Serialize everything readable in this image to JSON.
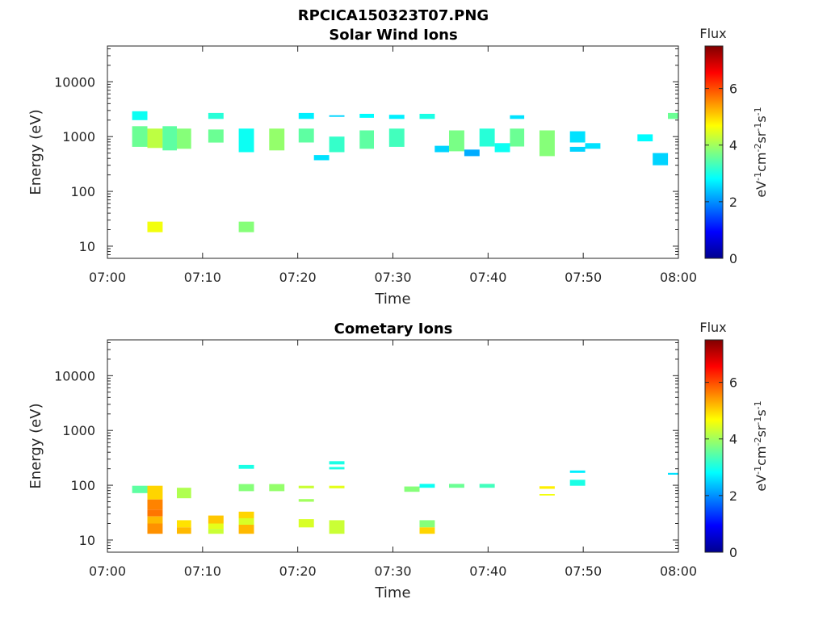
{
  "figure": {
    "title": "RPCICA150323T07.PNG"
  },
  "chart_data": [
    {
      "type": "heatmap",
      "title": "Solar Wind Ions",
      "xlabel": "Time",
      "ylabel": "Energy (eV)",
      "x_ticks": [
        "07:00",
        "07:10",
        "07:20",
        "07:30",
        "07:40",
        "07:50",
        "08:00"
      ],
      "xlim": [
        0,
        60
      ],
      "y_scale": "log",
      "ylim": [
        6,
        45000
      ],
      "y_ticks": [
        10,
        100,
        1000,
        10000
      ],
      "y_tick_labels": [
        "10",
        "100",
        "1000",
        "10000"
      ],
      "colorbar": {
        "title": "Flux",
        "label_html": "eV<sup>-1</sup>cm<sup>-2</sup>sr<sup>-1</sup>s<sup>-1</sup>",
        "label": "eV-1cm-2sr-1s-1",
        "range": [
          0,
          7.5
        ],
        "ticks": [
          0,
          2,
          4,
          6
        ]
      },
      "cells": [
        {
          "t0": 2.6,
          "t1": 4.2,
          "e0": 2000,
          "e1": 2900,
          "v": 2.9
        },
        {
          "t0": 2.6,
          "t1": 4.2,
          "e0": 650,
          "e1": 1550,
          "v": 3.6
        },
        {
          "t0": 4.2,
          "t1": 5.8,
          "e0": 620,
          "e1": 1400,
          "v": 4.2
        },
        {
          "t0": 5.8,
          "t1": 7.3,
          "e0": 560,
          "e1": 1550,
          "v": 3.5
        },
        {
          "t0": 7.3,
          "t1": 8.8,
          "e0": 600,
          "e1": 1400,
          "v": 3.8
        },
        {
          "t0": 4.2,
          "t1": 5.8,
          "e0": 18,
          "e1": 28,
          "v": 4.6
        },
        {
          "t0": 10.6,
          "t1": 12.2,
          "e0": 2100,
          "e1": 2700,
          "v": 3.1
        },
        {
          "t0": 10.6,
          "t1": 12.2,
          "e0": 780,
          "e1": 1350,
          "v": 3.6
        },
        {
          "t0": 13.8,
          "t1": 15.4,
          "e0": 520,
          "e1": 1400,
          "v": 2.9
        },
        {
          "t0": 13.8,
          "t1": 15.4,
          "e0": 18,
          "e1": 28,
          "v": 3.8
        },
        {
          "t0": 17.0,
          "t1": 18.6,
          "e0": 560,
          "e1": 1400,
          "v": 3.9
        },
        {
          "t0": 20.1,
          "t1": 21.7,
          "e0": 2100,
          "e1": 2700,
          "v": 2.7
        },
        {
          "t0": 20.1,
          "t1": 21.7,
          "e0": 780,
          "e1": 1400,
          "v": 3.5
        },
        {
          "t0": 21.7,
          "t1": 23.3,
          "e0": 370,
          "e1": 460,
          "v": 2.6
        },
        {
          "t0": 23.3,
          "t1": 24.9,
          "e0": 2300,
          "e1": 2450,
          "v": 2.5
        },
        {
          "t0": 23.3,
          "t1": 24.9,
          "e0": 520,
          "e1": 1000,
          "v": 3.2
        },
        {
          "t0": 26.5,
          "t1": 28.0,
          "e0": 2200,
          "e1": 2600,
          "v": 2.8
        },
        {
          "t0": 26.5,
          "t1": 28.0,
          "e0": 600,
          "e1": 1300,
          "v": 3.5
        },
        {
          "t0": 29.6,
          "t1": 31.2,
          "e0": 2100,
          "e1": 2500,
          "v": 2.7
        },
        {
          "t0": 29.6,
          "t1": 31.2,
          "e0": 650,
          "e1": 1400,
          "v": 3.3
        },
        {
          "t0": 32.8,
          "t1": 34.4,
          "e0": 2100,
          "e1": 2600,
          "v": 3.0
        },
        {
          "t0": 34.4,
          "t1": 35.9,
          "e0": 520,
          "e1": 680,
          "v": 2.5
        },
        {
          "t0": 35.9,
          "t1": 37.5,
          "e0": 540,
          "e1": 1300,
          "v": 3.7
        },
        {
          "t0": 37.5,
          "t1": 39.1,
          "e0": 440,
          "e1": 580,
          "v": 2.2
        },
        {
          "t0": 39.1,
          "t1": 40.7,
          "e0": 660,
          "e1": 1400,
          "v": 3.1
        },
        {
          "t0": 40.7,
          "t1": 42.3,
          "e0": 520,
          "e1": 760,
          "v": 2.9
        },
        {
          "t0": 42.3,
          "t1": 43.8,
          "e0": 2100,
          "e1": 2450,
          "v": 2.6
        },
        {
          "t0": 42.3,
          "t1": 43.8,
          "e0": 660,
          "e1": 1400,
          "v": 3.6
        },
        {
          "t0": 45.4,
          "t1": 47.0,
          "e0": 440,
          "e1": 1300,
          "v": 3.8
        },
        {
          "t0": 48.6,
          "t1": 50.2,
          "e0": 780,
          "e1": 1250,
          "v": 2.6
        },
        {
          "t0": 48.6,
          "t1": 50.2,
          "e0": 530,
          "e1": 650,
          "v": 2.5
        },
        {
          "t0": 50.2,
          "t1": 51.8,
          "e0": 600,
          "e1": 760,
          "v": 2.6
        },
        {
          "t0": 55.7,
          "t1": 57.3,
          "e0": 820,
          "e1": 1100,
          "v": 2.8
        },
        {
          "t0": 57.3,
          "t1": 58.9,
          "e0": 300,
          "e1": 500,
          "v": 2.5
        },
        {
          "t0": 58.9,
          "t1": 60.0,
          "e0": 2100,
          "e1": 2700,
          "v": 3.6
        }
      ]
    },
    {
      "type": "heatmap",
      "title": "Cometary Ions",
      "xlabel": "Time",
      "ylabel": "Energy (eV)",
      "x_ticks": [
        "07:00",
        "07:10",
        "07:20",
        "07:30",
        "07:40",
        "07:50",
        "08:00"
      ],
      "xlim": [
        0,
        60
      ],
      "y_scale": "log",
      "ylim": [
        6,
        45000
      ],
      "y_ticks": [
        10,
        100,
        1000,
        10000
      ],
      "y_tick_labels": [
        "10",
        "100",
        "1000",
        "10000"
      ],
      "colorbar": {
        "title": "Flux",
        "label_html": "eV<sup>-1</sup>cm<sup>-2</sup>sr<sup>-1</sup>s<sup>-1</sup>",
        "label": "eV-1cm-2sr-1s-1",
        "range": [
          0,
          7.5
        ],
        "ticks": [
          0,
          2,
          4,
          6
        ]
      },
      "cells": [
        {
          "t0": 2.6,
          "t1": 4.2,
          "e0": 72,
          "e1": 98,
          "v": 3.5
        },
        {
          "t0": 4.2,
          "t1": 5.8,
          "e0": 55,
          "e1": 98,
          "v": 5.0
        },
        {
          "t0": 4.2,
          "t1": 5.8,
          "e0": 36,
          "e1": 55,
          "v": 5.6
        },
        {
          "t0": 4.2,
          "t1": 5.8,
          "e0": 27,
          "e1": 36,
          "v": 5.7
        },
        {
          "t0": 4.2,
          "t1": 5.8,
          "e0": 20,
          "e1": 27,
          "v": 5.2
        },
        {
          "t0": 4.2,
          "t1": 5.8,
          "e0": 13,
          "e1": 20,
          "v": 5.5
        },
        {
          "t0": 7.3,
          "t1": 8.8,
          "e0": 58,
          "e1": 90,
          "v": 4.1
        },
        {
          "t0": 7.3,
          "t1": 8.8,
          "e0": 17,
          "e1": 23,
          "v": 4.9
        },
        {
          "t0": 7.3,
          "t1": 8.8,
          "e0": 13,
          "e1": 17,
          "v": 5.2
        },
        {
          "t0": 10.6,
          "t1": 12.2,
          "e0": 20,
          "e1": 28,
          "v": 5.1
        },
        {
          "t0": 10.6,
          "t1": 12.2,
          "e0": 16,
          "e1": 20,
          "v": 4.5
        },
        {
          "t0": 10.6,
          "t1": 12.2,
          "e0": 13,
          "e1": 16,
          "v": 4.3
        },
        {
          "t0": 13.8,
          "t1": 15.4,
          "e0": 200,
          "e1": 235,
          "v": 3.0
        },
        {
          "t0": 13.8,
          "t1": 15.4,
          "e0": 78,
          "e1": 105,
          "v": 3.8
        },
        {
          "t0": 13.8,
          "t1": 15.4,
          "e0": 25,
          "e1": 33,
          "v": 5.0
        },
        {
          "t0": 13.8,
          "t1": 15.4,
          "e0": 19,
          "e1": 25,
          "v": 4.4
        },
        {
          "t0": 13.8,
          "t1": 15.4,
          "e0": 13,
          "e1": 19,
          "v": 5.2
        },
        {
          "t0": 17.0,
          "t1": 18.6,
          "e0": 78,
          "e1": 105,
          "v": 3.9
        },
        {
          "t0": 20.1,
          "t1": 21.7,
          "e0": 88,
          "e1": 98,
          "v": 4.3
        },
        {
          "t0": 20.1,
          "t1": 21.7,
          "e0": 50,
          "e1": 56,
          "v": 4.0
        },
        {
          "t0": 20.1,
          "t1": 21.7,
          "e0": 17,
          "e1": 24,
          "v": 4.4
        },
        {
          "t0": 23.3,
          "t1": 24.9,
          "e0": 240,
          "e1": 275,
          "v": 3.0
        },
        {
          "t0": 23.3,
          "t1": 24.9,
          "e0": 195,
          "e1": 215,
          "v": 3.0
        },
        {
          "t0": 23.3,
          "t1": 24.9,
          "e0": 88,
          "e1": 98,
          "v": 4.5
        },
        {
          "t0": 23.3,
          "t1": 24.9,
          "e0": 13,
          "e1": 23,
          "v": 4.3
        },
        {
          "t0": 31.2,
          "t1": 32.8,
          "e0": 76,
          "e1": 95,
          "v": 3.8
        },
        {
          "t0": 32.8,
          "t1": 34.4,
          "e0": 90,
          "e1": 106,
          "v": 2.9
        },
        {
          "t0": 32.8,
          "t1": 34.4,
          "e0": 17,
          "e1": 23,
          "v": 3.8
        },
        {
          "t0": 32.8,
          "t1": 34.4,
          "e0": 13,
          "e1": 17,
          "v": 5.0
        },
        {
          "t0": 35.9,
          "t1": 37.5,
          "e0": 90,
          "e1": 106,
          "v": 3.6
        },
        {
          "t0": 39.1,
          "t1": 40.7,
          "e0": 90,
          "e1": 106,
          "v": 3.3
        },
        {
          "t0": 45.4,
          "t1": 47.0,
          "e0": 86,
          "e1": 96,
          "v": 4.8
        },
        {
          "t0": 45.4,
          "t1": 47.0,
          "e0": 65,
          "e1": 69,
          "v": 4.6
        },
        {
          "t0": 48.6,
          "t1": 50.2,
          "e0": 168,
          "e1": 186,
          "v": 2.7
        },
        {
          "t0": 48.6,
          "t1": 50.2,
          "e0": 98,
          "e1": 126,
          "v": 3.0
        },
        {
          "t0": 58.9,
          "t1": 60.0,
          "e0": 156,
          "e1": 168,
          "v": 2.6
        }
      ]
    }
  ]
}
